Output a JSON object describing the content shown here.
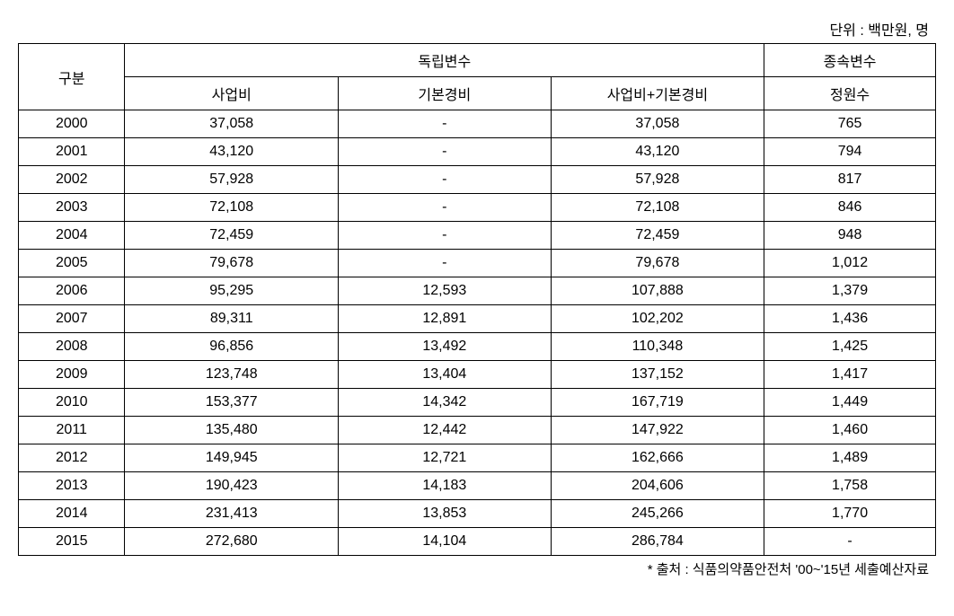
{
  "unit_label": "단위 : 백만원, 명",
  "source_label": "* 출처 : 식품의약품안전처 '00~'15년 세출예산자료",
  "header": {
    "gubun": "구분",
    "indep_group": "독립변수",
    "dep_group": "종속변수",
    "col1": "사업비",
    "col2": "기본경비",
    "col3": "사업비+기본경비",
    "col4": "정원수"
  },
  "rows": [
    {
      "year": "2000",
      "c1": "37,058",
      "c2": "-",
      "c3": "37,058",
      "c4": "765"
    },
    {
      "year": "2001",
      "c1": "43,120",
      "c2": "-",
      "c3": "43,120",
      "c4": "794"
    },
    {
      "year": "2002",
      "c1": "57,928",
      "c2": "-",
      "c3": "57,928",
      "c4": "817"
    },
    {
      "year": "2003",
      "c1": "72,108",
      "c2": "-",
      "c3": "72,108",
      "c4": "846"
    },
    {
      "year": "2004",
      "c1": "72,459",
      "c2": "-",
      "c3": "72,459",
      "c4": "948"
    },
    {
      "year": "2005",
      "c1": "79,678",
      "c2": "-",
      "c3": "79,678",
      "c4": "1,012"
    },
    {
      "year": "2006",
      "c1": "95,295",
      "c2": "12,593",
      "c3": "107,888",
      "c4": "1,379"
    },
    {
      "year": "2007",
      "c1": "89,311",
      "c2": "12,891",
      "c3": "102,202",
      "c4": "1,436"
    },
    {
      "year": "2008",
      "c1": "96,856",
      "c2": "13,492",
      "c3": "110,348",
      "c4": "1,425"
    },
    {
      "year": "2009",
      "c1": "123,748",
      "c2": "13,404",
      "c3": "137,152",
      "c4": "1,417"
    },
    {
      "year": "2010",
      "c1": "153,377",
      "c2": "14,342",
      "c3": "167,719",
      "c4": "1,449"
    },
    {
      "year": "2011",
      "c1": "135,480",
      "c2": "12,442",
      "c3": "147,922",
      "c4": "1,460"
    },
    {
      "year": "2012",
      "c1": "149,945",
      "c2": "12,721",
      "c3": "162,666",
      "c4": "1,489"
    },
    {
      "year": "2013",
      "c1": "190,423",
      "c2": "14,183",
      "c3": "204,606",
      "c4": "1,758"
    },
    {
      "year": "2014",
      "c1": "231,413",
      "c2": "13,853",
      "c3": "245,266",
      "c4": "1,770"
    },
    {
      "year": "2015",
      "c1": "272,680",
      "c2": "14,104",
      "c3": "286,784",
      "c4": "-"
    }
  ],
  "styling": {
    "border_color": "#000000",
    "background_color": "#ffffff",
    "font_family": "Malgun Gothic",
    "font_size_table": 16,
    "font_size_labels": 16,
    "col_widths": {
      "gubun": 100,
      "data": 230,
      "dep": 180
    }
  }
}
